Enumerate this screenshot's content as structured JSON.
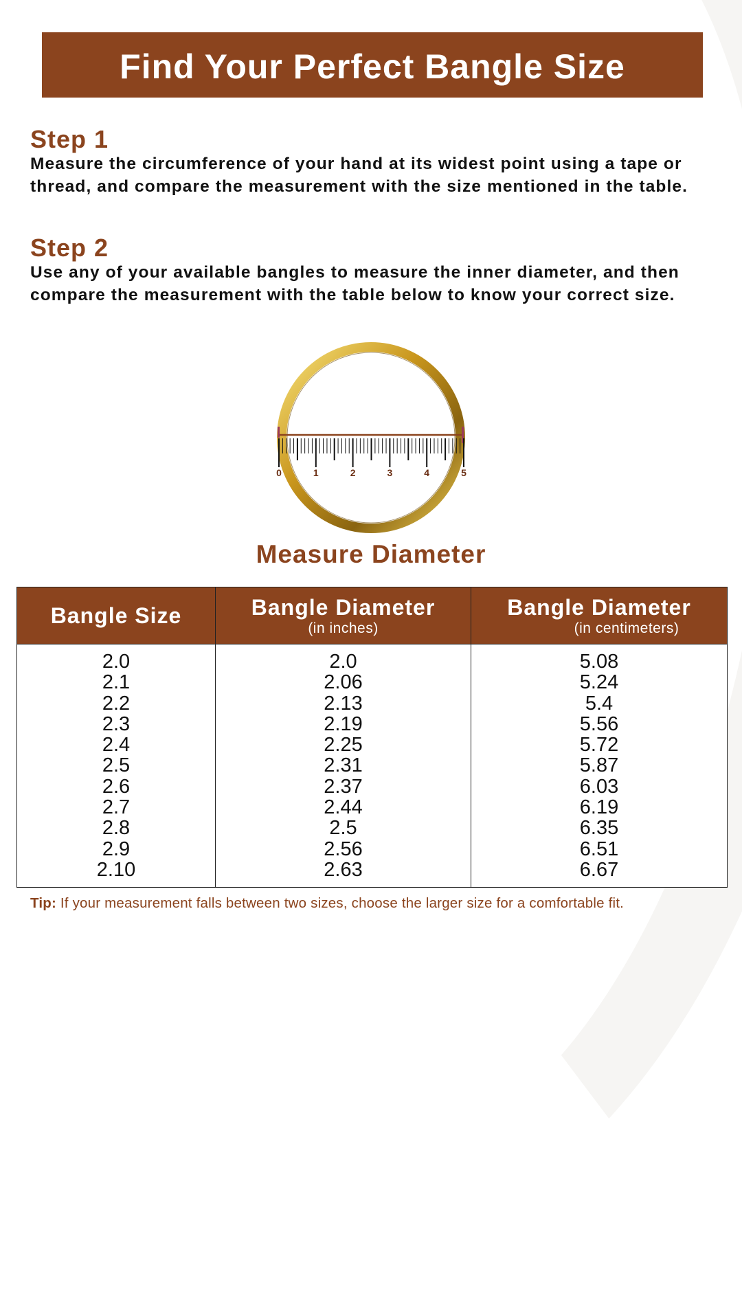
{
  "title": "Find Your Perfect Bangle Size",
  "steps": [
    {
      "heading": "Step 1",
      "text": "Measure the circumference of your hand at its widest point using a tape or thread, and compare the measurement with the size mentioned in the table."
    },
    {
      "heading": "Step 2",
      "text": "Use any of your available bangles to measure the inner diameter, and then compare the measurement with the table below to know your correct size."
    }
  ],
  "illustration": {
    "icon": "gold-bangle-with-ruler",
    "ruler_labels": [
      "0",
      "1",
      "2",
      "3",
      "4",
      "5"
    ],
    "caption": "Measure Diameter"
  },
  "table": {
    "headers": [
      {
        "main": "Bangle Size",
        "sub": ""
      },
      {
        "main": "Bangle Diameter",
        "sub": "(in inches)"
      },
      {
        "main": "Bangle Diameter",
        "sub": "(in centimeters)"
      }
    ],
    "rows": [
      [
        "2.0",
        "2.0",
        "5.08"
      ],
      [
        "2.1",
        "2.06",
        "5.24"
      ],
      [
        "2.2",
        "2.13",
        "5.4"
      ],
      [
        "2.3",
        "2.19",
        "5.56"
      ],
      [
        "2.4",
        "2.25",
        "5.72"
      ],
      [
        "2.5",
        "2.31",
        "5.87"
      ],
      [
        "2.6",
        "2.37",
        "6.03"
      ],
      [
        "2.7",
        "2.44",
        "6.19"
      ],
      [
        "2.8",
        "2.5",
        "6.35"
      ],
      [
        "2.9",
        "2.56",
        "6.51"
      ],
      [
        "2.10",
        "2.63",
        "6.67"
      ]
    ]
  },
  "tip": {
    "label": "Tip:",
    "text": " If your measurement falls between two sizes, choose the larger size for a comfortable fit."
  },
  "colors": {
    "brand": "#8b441e",
    "gold": "#d4a72c"
  }
}
